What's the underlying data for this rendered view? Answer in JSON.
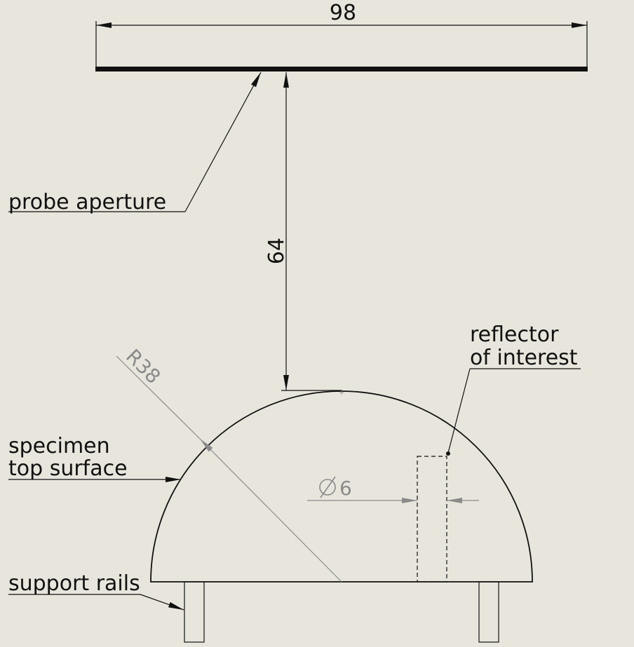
{
  "dimensions": {
    "probe_width": "98",
    "standoff_distance": "64",
    "specimen_radius": "R38",
    "reflector_diameter_value": "6"
  },
  "labels": {
    "probe_aperture": "probe aperture",
    "reflector_line1": "reflector",
    "reflector_line2": "of interest",
    "specimen_line1": "specimen",
    "specimen_line2": "top surface",
    "support_rails": "support rails"
  },
  "colors": {
    "background": "#e8e6dc",
    "line": "#111111",
    "dimension_grey": "#8a8a8a"
  }
}
